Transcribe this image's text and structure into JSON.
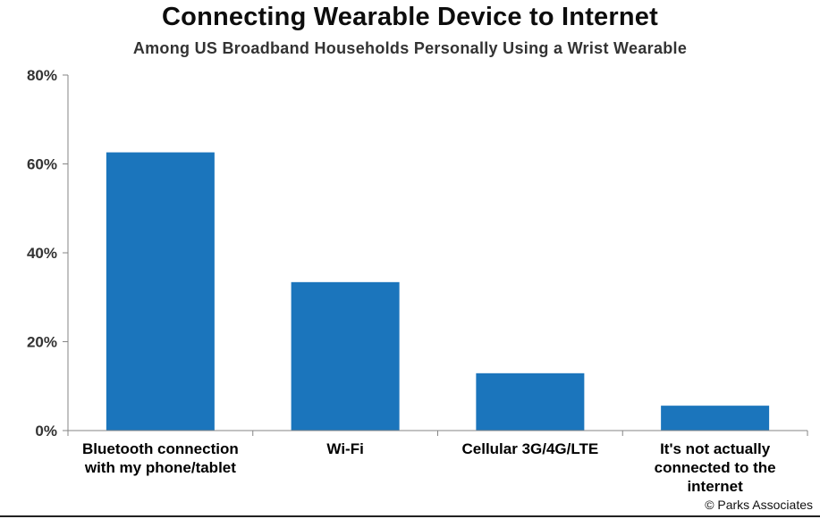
{
  "chart_data": {
    "type": "bar",
    "title": "Connecting Wearable Device to Internet",
    "subtitle": "Among US Broadband Households Personally Using a Wrist Wearable",
    "categories": [
      "Bluetooth connection with my phone/tablet",
      "Wi-Fi",
      "Cellular 3G/4G/LTE",
      "It's not actually connected to the internet"
    ],
    "category_lines": [
      [
        "Bluetooth connection",
        "with my phone/tablet"
      ],
      [
        "Wi-Fi"
      ],
      [
        "Cellular 3G/4G/LTE"
      ],
      [
        "It's not actually",
        "connected to the",
        "internet"
      ]
    ],
    "values": [
      62.6,
      33.4,
      12.9,
      5.6
    ],
    "ylim": [
      0,
      80
    ],
    "yticks": [
      "0%",
      "20%",
      "40%",
      "60%",
      "80%"
    ],
    "ytick_values": [
      0,
      20,
      40,
      60,
      80
    ],
    "xlabel": "",
    "ylabel": "",
    "grid": false,
    "legend": "none",
    "bar_color": "#1b75bc",
    "axis_color": "#868686"
  },
  "source_credit": "© Parks Associates"
}
